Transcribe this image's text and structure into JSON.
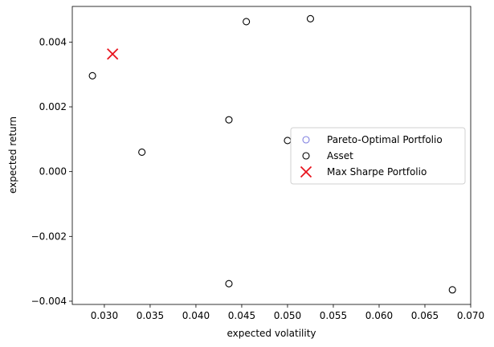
{
  "chart_data": {
    "type": "scatter",
    "xlabel": "expected volatility",
    "ylabel": "expected return",
    "xlim": [
      0.0265,
      0.07
    ],
    "ylim": [
      -0.0041,
      0.0051
    ],
    "xticks": [
      0.03,
      0.035,
      0.04,
      0.045,
      0.05,
      0.055,
      0.06,
      0.065,
      0.07
    ],
    "xtick_labels": [
      "0.030",
      "0.035",
      "0.040",
      "0.045",
      "0.050",
      "0.055",
      "0.060",
      "0.065",
      "0.070"
    ],
    "yticks": [
      -0.004,
      -0.002,
      0.0,
      0.002,
      0.004
    ],
    "ytick_labels": [
      "−0.004",
      "−0.002",
      "0.000",
      "0.002",
      "0.004"
    ],
    "grid": false,
    "legend_position": "center-right",
    "series": [
      {
        "name": "Pareto-Optimal Portfolio",
        "marker": "open-circle",
        "color": "#8080e0",
        "points": []
      },
      {
        "name": "Asset",
        "marker": "open-circle",
        "color": "#000000",
        "points": [
          {
            "x": 0.0287,
            "y": 0.00296
          },
          {
            "x": 0.0341,
            "y": 0.0006
          },
          {
            "x": 0.0436,
            "y": 0.0016
          },
          {
            "x": 0.0455,
            "y": 0.00463
          },
          {
            "x": 0.0525,
            "y": 0.00472
          },
          {
            "x": 0.05,
            "y": 0.00096
          },
          {
            "x": 0.0436,
            "y": -0.00346
          },
          {
            "x": 0.068,
            "y": -0.00365
          }
        ]
      },
      {
        "name": "Max Sharpe Portfolio",
        "marker": "x",
        "color": "#e8141e",
        "points": [
          {
            "x": 0.0309,
            "y": 0.00363
          }
        ]
      }
    ]
  }
}
